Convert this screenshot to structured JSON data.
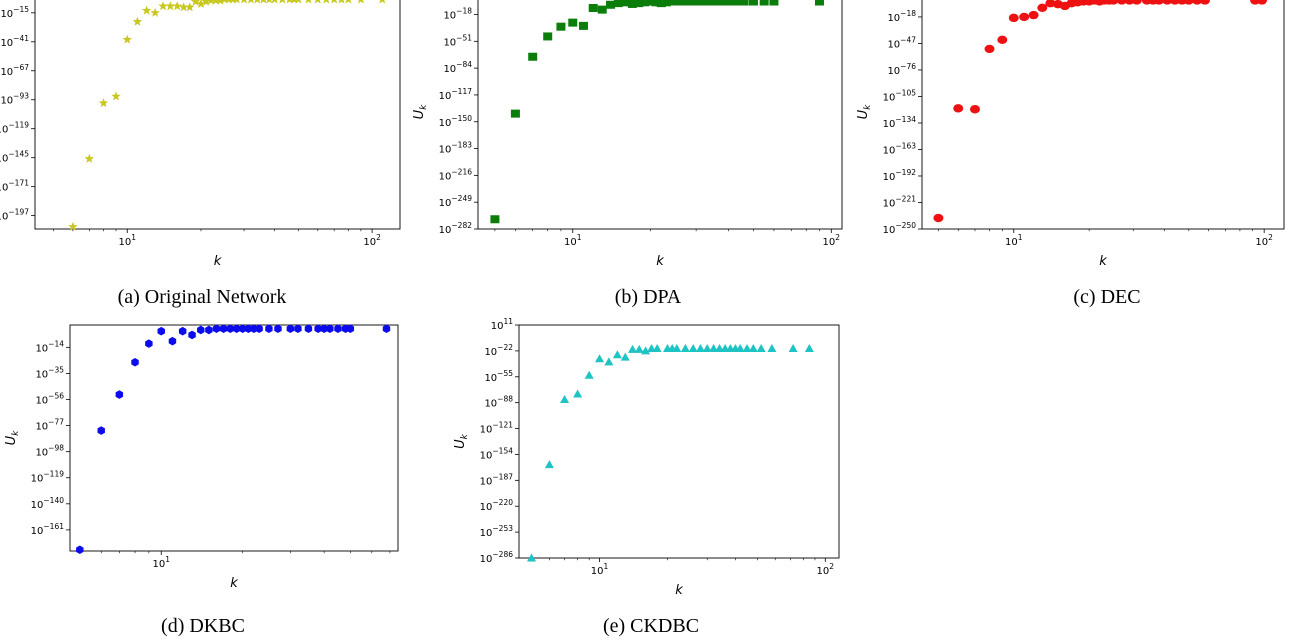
{
  "chart_data": [
    {
      "type": "scatter",
      "caption": "(a) Original Network",
      "xlabel": "k",
      "ylabel": "U_k",
      "xscale": "log",
      "yscale": "log",
      "xlim": [
        4.2,
        130
      ],
      "ylim": [
        -209,
        1
      ],
      "x_ticks": [
        {
          "label_base": "10",
          "label_exp": "1",
          "value": 10
        },
        {
          "label_base": "10",
          "label_exp": "2",
          "value": 100
        }
      ],
      "y_ticks": [
        "-15",
        "-41",
        "-67",
        "-93",
        "-119",
        "-145",
        "-171",
        "-197"
      ],
      "marker": "star",
      "color": "#c8c81e",
      "points": [
        [
          6,
          -207
        ],
        [
          7,
          -146
        ],
        [
          8,
          -96
        ],
        [
          9,
          -90
        ],
        [
          10,
          -39
        ],
        [
          11,
          -23
        ],
        [
          12,
          -13
        ],
        [
          13,
          -15
        ],
        [
          14,
          -9
        ],
        [
          15,
          -9
        ],
        [
          16,
          -9
        ],
        [
          17,
          -10
        ],
        [
          18,
          -10
        ],
        [
          19,
          -5
        ],
        [
          20,
          -7
        ],
        [
          21,
          -5
        ],
        [
          22,
          -4
        ],
        [
          23,
          -4
        ],
        [
          24,
          -4
        ],
        [
          25,
          -3
        ],
        [
          26,
          -3
        ],
        [
          27,
          -3
        ],
        [
          28,
          -3
        ],
        [
          30,
          -3
        ],
        [
          32,
          -3
        ],
        [
          34,
          -3
        ],
        [
          36,
          -3
        ],
        [
          38,
          -3
        ],
        [
          40,
          -3
        ],
        [
          43,
          -3
        ],
        [
          46,
          -3
        ],
        [
          48,
          -3
        ],
        [
          50,
          -3
        ],
        [
          55,
          -3
        ],
        [
          60,
          -3
        ],
        [
          65,
          -3
        ],
        [
          70,
          -3
        ],
        [
          75,
          -3
        ],
        [
          80,
          -3
        ],
        [
          90,
          -3
        ],
        [
          110,
          -3
        ]
      ]
    },
    {
      "type": "scatter",
      "caption": "(b) DPA",
      "xlabel": "k",
      "ylabel": "U_k",
      "xscale": "log",
      "yscale": "log",
      "xlim": [
        4.3,
        110
      ],
      "ylim": [
        -282,
        6
      ],
      "x_ticks": [
        {
          "label_base": "10",
          "label_exp": "1",
          "value": 10
        },
        {
          "label_base": "10",
          "label_exp": "2",
          "value": 100
        }
      ],
      "y_ticks": [
        "-18",
        "-51",
        "-84",
        "-117",
        "-150",
        "-183",
        "-216",
        "-249",
        "-282"
      ],
      "marker": "square",
      "color": "#0a7d0a",
      "points": [
        [
          5,
          -270
        ],
        [
          6,
          -140
        ],
        [
          7,
          -70
        ],
        [
          8,
          -45
        ],
        [
          9,
          -33
        ],
        [
          10,
          -28
        ],
        [
          11,
          -32
        ],
        [
          12,
          -10
        ],
        [
          13,
          -12
        ],
        [
          14,
          -6
        ],
        [
          15,
          -4
        ],
        [
          16,
          -3
        ],
        [
          17,
          -5
        ],
        [
          18,
          -4
        ],
        [
          19,
          -3
        ],
        [
          20,
          -2
        ],
        [
          21,
          -3
        ],
        [
          22,
          -4
        ],
        [
          23,
          -3
        ],
        [
          24,
          -2
        ],
        [
          25,
          -2
        ],
        [
          26,
          -2
        ],
        [
          28,
          -2
        ],
        [
          30,
          -2
        ],
        [
          32,
          -2
        ],
        [
          34,
          -2
        ],
        [
          36,
          -2
        ],
        [
          38,
          -2
        ],
        [
          40,
          -2
        ],
        [
          43,
          -2
        ],
        [
          46,
          -2
        ],
        [
          50,
          -2
        ],
        [
          55,
          -2
        ],
        [
          60,
          -2
        ],
        [
          90,
          -2
        ]
      ]
    },
    {
      "type": "scatter",
      "caption": "(c) DEC",
      "xlabel": "k",
      "ylabel": "U_k",
      "xscale": "log",
      "yscale": "log",
      "xlim": [
        4.3,
        120
      ],
      "ylim": [
        -250,
        6
      ],
      "x_ticks": [
        {
          "label_base": "10",
          "label_exp": "1",
          "value": 10
        },
        {
          "label_base": "10",
          "label_exp": "2",
          "value": 100
        }
      ],
      "y_ticks": [
        "-18",
        "-47",
        "-76",
        "-105",
        "-134",
        "-163",
        "-192",
        "-221",
        "-250"
      ],
      "marker": "circle",
      "color": "#ee1111",
      "points": [
        [
          5,
          -238
        ],
        [
          6,
          -118
        ],
        [
          7,
          -119
        ],
        [
          8,
          -53
        ],
        [
          9,
          -43
        ],
        [
          10,
          -19
        ],
        [
          11,
          -18
        ],
        [
          12,
          -16
        ],
        [
          13,
          -8
        ],
        [
          14,
          -3
        ],
        [
          15,
          -4
        ],
        [
          16,
          -6
        ],
        [
          17,
          -3
        ],
        [
          18,
          -2
        ],
        [
          19,
          -1
        ],
        [
          20,
          -1
        ],
        [
          21,
          0
        ],
        [
          22,
          -1
        ],
        [
          23,
          0
        ],
        [
          24,
          0
        ],
        [
          25,
          0
        ],
        [
          27,
          0
        ],
        [
          29,
          0
        ],
        [
          31,
          0
        ],
        [
          34,
          0
        ],
        [
          36,
          0
        ],
        [
          38,
          0
        ],
        [
          41,
          0
        ],
        [
          44,
          0
        ],
        [
          47,
          0
        ],
        [
          50,
          0
        ],
        [
          54,
          0
        ],
        [
          58,
          0
        ],
        [
          92,
          0
        ],
        [
          98,
          0
        ]
      ]
    },
    {
      "type": "scatter",
      "caption": "(d) DKBC",
      "xlabel": "k",
      "ylabel": "U_k",
      "xscale": "log",
      "yscale": "log",
      "xlim": [
        4.6,
        75
      ],
      "ylim": [
        -178,
        4
      ],
      "x_ticks": [
        {
          "label_base": "10",
          "label_exp": "1",
          "value": 10
        }
      ],
      "y_ticks": [
        "-14",
        "-35",
        "-56",
        "-77",
        "-98",
        "-119",
        "-140",
        "-161"
      ],
      "marker": "hexagon",
      "color": "#0b0bee",
      "points": [
        [
          5,
          -177
        ],
        [
          6,
          -81
        ],
        [
          7,
          -52
        ],
        [
          8,
          -26
        ],
        [
          9,
          -11
        ],
        [
          10,
          -1
        ],
        [
          11,
          -9
        ],
        [
          12,
          -1
        ],
        [
          13,
          -4
        ],
        [
          14,
          0
        ],
        [
          15,
          0
        ],
        [
          16,
          1
        ],
        [
          17,
          1
        ],
        [
          18,
          1
        ],
        [
          19,
          1
        ],
        [
          20,
          1
        ],
        [
          21,
          1
        ],
        [
          22,
          1
        ],
        [
          23,
          1
        ],
        [
          25,
          1
        ],
        [
          27,
          1
        ],
        [
          30,
          1
        ],
        [
          32,
          1
        ],
        [
          35,
          1
        ],
        [
          38,
          1
        ],
        [
          40,
          1
        ],
        [
          42,
          1
        ],
        [
          45,
          1
        ],
        [
          48,
          1
        ],
        [
          50,
          1
        ],
        [
          68,
          1
        ]
      ]
    },
    {
      "type": "scatter",
      "caption": "(e) CKDBC",
      "xlabel": "k",
      "ylabel": "U_k",
      "xscale": "log",
      "yscale": "log",
      "xlim": [
        4.4,
        115
      ],
      "ylim": [
        -286,
        11
      ],
      "x_ticks": [
        {
          "label_base": "10",
          "label_exp": "1",
          "value": 10
        },
        {
          "label_base": "10",
          "label_exp": "2",
          "value": 100
        }
      ],
      "y_ticks": [
        "11",
        "-22",
        "-55",
        "-88",
        "-121",
        "-154",
        "-187",
        "-220",
        "-253",
        "-286"
      ],
      "marker": "triangle",
      "color": "#1ec3c3",
      "points": [
        [
          5,
          -286
        ],
        [
          6,
          -167
        ],
        [
          7,
          -84
        ],
        [
          8,
          -77
        ],
        [
          9,
          -53
        ],
        [
          10,
          -32
        ],
        [
          11,
          -36
        ],
        [
          12,
          -27
        ],
        [
          13,
          -30
        ],
        [
          14,
          -20
        ],
        [
          15,
          -20
        ],
        [
          16,
          -22
        ],
        [
          17,
          -19
        ],
        [
          18,
          -19
        ],
        [
          20,
          -19
        ],
        [
          21,
          -19
        ],
        [
          22,
          -19
        ],
        [
          24,
          -19
        ],
        [
          26,
          -19
        ],
        [
          28,
          -19
        ],
        [
          30,
          -19
        ],
        [
          32,
          -19
        ],
        [
          34,
          -19
        ],
        [
          36,
          -19
        ],
        [
          38,
          -19
        ],
        [
          40,
          -19
        ],
        [
          42,
          -19
        ],
        [
          45,
          -19
        ],
        [
          48,
          -19
        ],
        [
          52,
          -19
        ],
        [
          58,
          -19
        ],
        [
          72,
          -19
        ],
        [
          85,
          -19
        ]
      ]
    }
  ]
}
